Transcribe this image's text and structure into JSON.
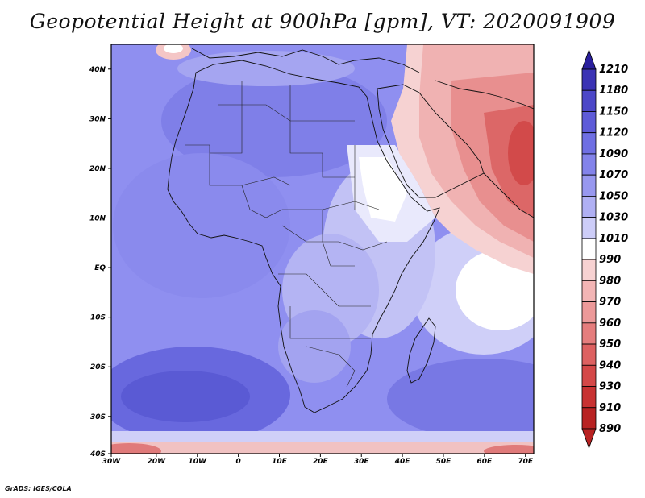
{
  "title": "Geopotential Height at 900hPa [gpm], VT: 2020091909",
  "credit": "GrADS: IGES/COLA",
  "map": {
    "lat_labels": [
      "40N",
      "30N",
      "20N",
      "10N",
      "EQ",
      "10S",
      "20S",
      "30S",
      "40S"
    ],
    "lon_labels": [
      "30W",
      "20W",
      "10W",
      "0",
      "10E",
      "20E",
      "30E",
      "40E",
      "50E",
      "60E",
      "70E"
    ]
  },
  "colorbar": {
    "labels": [
      "1210",
      "1180",
      "1150",
      "1120",
      "1090",
      "1070",
      "1050",
      "1030",
      "1010",
      "990",
      "980",
      "970",
      "960",
      "950",
      "940",
      "930",
      "910",
      "890"
    ],
    "colors": [
      "#2a1f9e",
      "#3b33b4",
      "#4c47c8",
      "#5e5bd8",
      "#6f6fe3",
      "#8383ea",
      "#9898ef",
      "#b0b0f3",
      "#cdcdf8",
      "#ffffff",
      "#f7d2d2",
      "#f2b5b5",
      "#ec9999",
      "#e57d7d",
      "#dd6161",
      "#d44848",
      "#c83232",
      "#b82222"
    ]
  }
}
